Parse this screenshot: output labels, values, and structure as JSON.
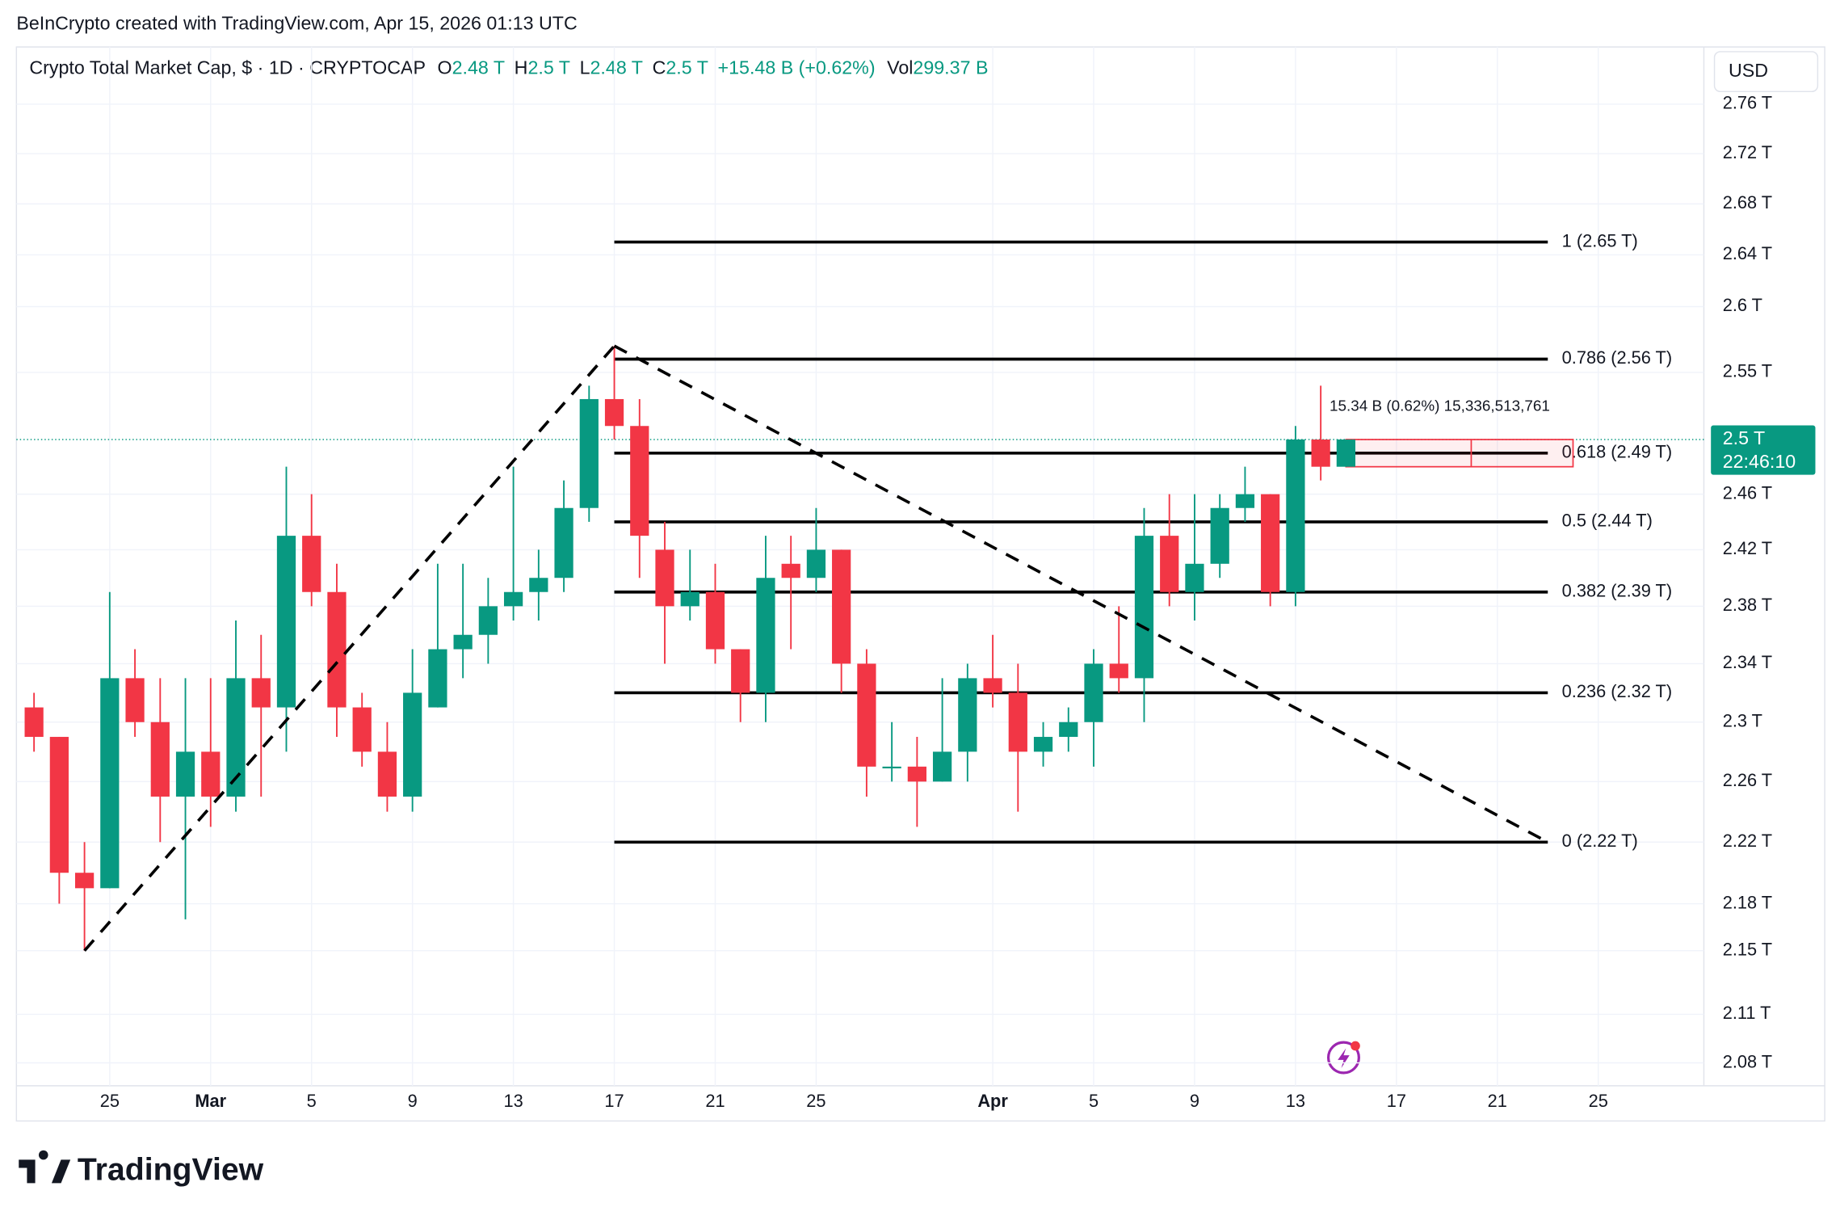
{
  "header": "BeInCrypto created with TradingView.com, Apr 15, 2026 01:13 UTC",
  "brand": "TradingView",
  "chart_data": {
    "type": "candlestick",
    "title": "Crypto Total Market Cap, $ · 1D · CRYPTOCAP",
    "ohlc_legend": [
      {
        "key": "O",
        "value": "2.48 T"
      },
      {
        "key": "H",
        "value": "2.5 T"
      },
      {
        "key": "L",
        "value": "2.48 T"
      },
      {
        "key": "C",
        "value": "2.5 T"
      }
    ],
    "change": "+15.48 B (+0.62%)",
    "volume": {
      "key": "Vol",
      "value": "299.37 B"
    },
    "currency": "USD",
    "x": [
      "Feb 22",
      "Feb 23",
      "Feb 24",
      "Feb 25",
      "Feb 26",
      "Feb 27",
      "Feb 28",
      "Mar 1",
      "Mar 2",
      "Mar 3",
      "Mar 4",
      "Mar 5",
      "Mar 6",
      "Mar 7",
      "Mar 8",
      "Mar 9",
      "Mar 10",
      "Mar 11",
      "Mar 12",
      "Mar 13",
      "Mar 14",
      "Mar 15",
      "Mar 16",
      "Mar 17",
      "Mar 18",
      "Mar 19",
      "Mar 20",
      "Mar 21",
      "Mar 22",
      "Mar 23",
      "Mar 24",
      "Mar 25",
      "Mar 26",
      "Mar 27",
      "Mar 28",
      "Mar 29",
      "Mar 30",
      "Mar 31",
      "Apr 1",
      "Apr 2",
      "Apr 3",
      "Apr 4",
      "Apr 5",
      "Apr 6",
      "Apr 7",
      "Apr 8",
      "Apr 9",
      "Apr 10",
      "Apr 11",
      "Apr 12",
      "Apr 13",
      "Apr 14",
      "Apr 15"
    ],
    "open": [
      2.31,
      2.29,
      2.2,
      2.19,
      2.33,
      2.3,
      2.25,
      2.28,
      2.25,
      2.33,
      2.31,
      2.43,
      2.39,
      2.31,
      2.28,
      2.25,
      2.31,
      2.35,
      2.36,
      2.38,
      2.39,
      2.4,
      2.45,
      2.53,
      2.51,
      2.42,
      2.38,
      2.39,
      2.35,
      2.32,
      2.41,
      2.4,
      2.42,
      2.34,
      2.27,
      2.27,
      2.26,
      2.28,
      2.33,
      2.32,
      2.28,
      2.29,
      2.3,
      2.34,
      2.33,
      2.43,
      2.39,
      2.41,
      2.45,
      2.46,
      2.39,
      2.5,
      2.48
    ],
    "high": [
      2.32,
      2.29,
      2.22,
      2.39,
      2.35,
      2.33,
      2.33,
      2.33,
      2.37,
      2.36,
      2.48,
      2.46,
      2.41,
      2.32,
      2.3,
      2.35,
      2.41,
      2.41,
      2.4,
      2.48,
      2.42,
      2.47,
      2.54,
      2.57,
      2.53,
      2.44,
      2.42,
      2.41,
      2.35,
      2.43,
      2.43,
      2.45,
      2.42,
      2.35,
      2.3,
      2.29,
      2.33,
      2.34,
      2.36,
      2.34,
      2.3,
      2.31,
      2.35,
      2.38,
      2.45,
      2.46,
      2.46,
      2.46,
      2.48,
      2.46,
      2.51,
      2.54,
      2.5
    ],
    "low": [
      2.28,
      2.18,
      2.15,
      2.19,
      2.29,
      2.22,
      2.17,
      2.23,
      2.24,
      2.25,
      2.28,
      2.38,
      2.29,
      2.27,
      2.24,
      2.24,
      2.31,
      2.33,
      2.34,
      2.37,
      2.37,
      2.39,
      2.44,
      2.5,
      2.4,
      2.34,
      2.37,
      2.34,
      2.3,
      2.3,
      2.35,
      2.39,
      2.32,
      2.25,
      2.26,
      2.23,
      2.26,
      2.26,
      2.31,
      2.24,
      2.27,
      2.28,
      2.27,
      2.32,
      2.3,
      2.38,
      2.37,
      2.4,
      2.44,
      2.38,
      2.38,
      2.47,
      2.48
    ],
    "close": [
      2.29,
      2.2,
      2.19,
      2.33,
      2.3,
      2.25,
      2.28,
      2.25,
      2.33,
      2.31,
      2.43,
      2.39,
      2.31,
      2.28,
      2.25,
      2.32,
      2.35,
      2.36,
      2.38,
      2.39,
      2.4,
      2.45,
      2.53,
      2.51,
      2.43,
      2.38,
      2.39,
      2.35,
      2.32,
      2.4,
      2.4,
      2.42,
      2.34,
      2.27,
      2.27,
      2.26,
      2.28,
      2.33,
      2.32,
      2.28,
      2.29,
      2.3,
      2.34,
      2.33,
      2.43,
      2.39,
      2.41,
      2.45,
      2.46,
      2.39,
      2.5,
      2.48,
      2.5
    ],
    "up_color": "#089981",
    "down_color": "#f23645",
    "log_scale": true,
    "grid": true,
    "ylim": [
      2.066,
      2.807
    ],
    "yticks": [
      {
        "value": 2.08,
        "label": "2.08 T"
      },
      {
        "value": 2.11,
        "label": "2.11 T"
      },
      {
        "value": 2.15,
        "label": "2.15 T"
      },
      {
        "value": 2.18,
        "label": "2.18 T"
      },
      {
        "value": 2.22,
        "label": "2.22 T"
      },
      {
        "value": 2.26,
        "label": "2.26 T"
      },
      {
        "value": 2.3,
        "label": "2.3 T"
      },
      {
        "value": 2.34,
        "label": "2.34 T"
      },
      {
        "value": 2.38,
        "label": "2.38 T"
      },
      {
        "value": 2.42,
        "label": "2.42 T"
      },
      {
        "value": 2.46,
        "label": "2.46 T"
      },
      {
        "value": 2.55,
        "label": "2.55 T"
      },
      {
        "value": 2.6,
        "label": "2.6 T"
      },
      {
        "value": 2.64,
        "label": "2.64 T"
      },
      {
        "value": 2.68,
        "label": "2.68 T"
      },
      {
        "value": 2.72,
        "label": "2.72 T"
      },
      {
        "value": 2.76,
        "label": "2.76 T"
      }
    ],
    "xticks": [
      {
        "value": "Feb 25",
        "label": "25"
      },
      {
        "value": "Mar 1",
        "label": "Mar"
      },
      {
        "value": "Mar 5",
        "label": "5"
      },
      {
        "value": "Mar 9",
        "label": "9"
      },
      {
        "value": "Mar 13",
        "label": "13"
      },
      {
        "value": "Mar 17",
        "label": "17"
      },
      {
        "value": "Mar 21",
        "label": "21"
      },
      {
        "value": "Mar 25",
        "label": "25"
      },
      {
        "value": "Apr 1",
        "label": "Apr"
      },
      {
        "value": "Apr 5",
        "label": "5"
      },
      {
        "value": "Apr 9",
        "label": "9"
      },
      {
        "value": "Apr 13",
        "label": "13"
      },
      {
        "value": "Apr 17",
        "label": "17"
      },
      {
        "value": "Apr 21",
        "label": "21"
      },
      {
        "value": "Apr 25",
        "label": "25"
      }
    ],
    "last_price": {
      "value": 2.5,
      "label": "2.5 T",
      "countdown": "22:46:10"
    },
    "fib_levels": [
      {
        "value": 2.65,
        "label": "1 (2.65 T)"
      },
      {
        "value": 2.56,
        "label": "0.786 (2.56 T)"
      },
      {
        "value": 2.49,
        "label": "0.618 (2.49 T)"
      },
      {
        "value": 2.44,
        "label": "0.5 (2.44 T)"
      },
      {
        "value": 2.39,
        "label": "0.382 (2.39 T)"
      },
      {
        "value": 2.32,
        "label": "0.236 (2.32 T)"
      },
      {
        "value": 2.22,
        "label": "0 (2.22 T)"
      }
    ],
    "fib_range": [
      "Mar 17",
      "Apr 23"
    ],
    "trend_lines": [
      {
        "x": [
          "Feb 24",
          "Mar 17"
        ],
        "y": [
          2.15,
          2.57
        ]
      },
      {
        "x": [
          "Mar 17",
          "Apr 23"
        ],
        "y": [
          2.57,
          2.22
        ]
      }
    ],
    "measure": {
      "label": "15.34 B (0.62%) 15,336,513,761",
      "x": [
        "Apr 15",
        "Apr 24"
      ],
      "y": [
        2.5,
        2.48
      ]
    }
  }
}
